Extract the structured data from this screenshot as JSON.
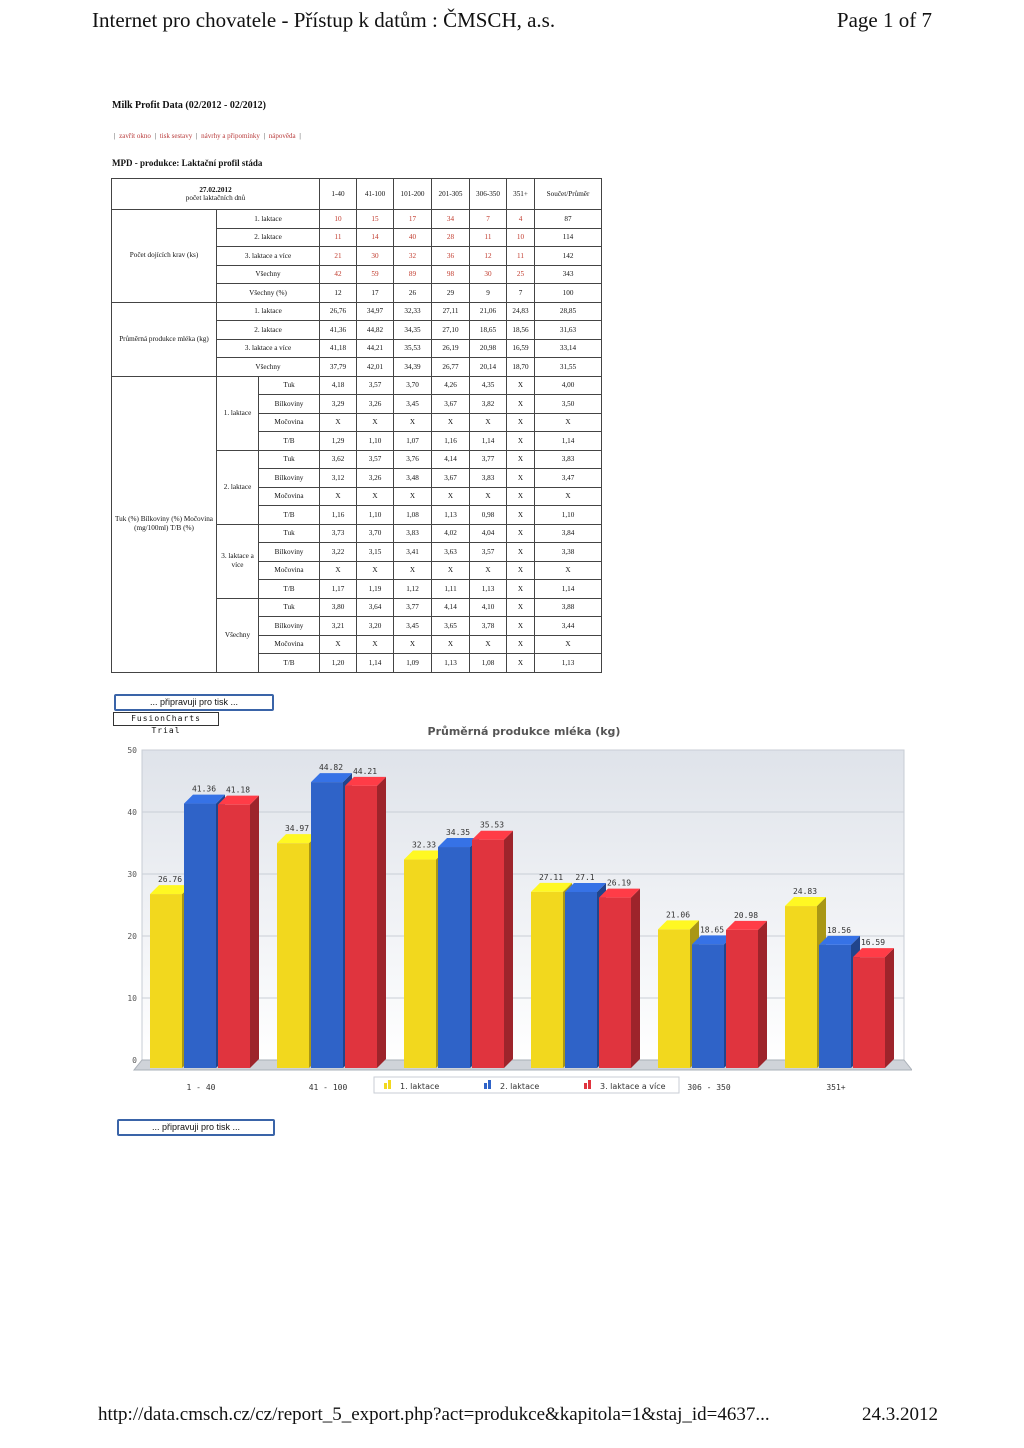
{
  "header": {
    "title": "Internet pro chovatele - Přístup k datům : ČMSCH, a.s.",
    "page": "Page 1 of 7"
  },
  "app_title": "Milk Profit Data (02/2012 - 02/2012)",
  "links": [
    "zavřít okno",
    "tisk sestavy",
    "návrhy a připomínky",
    "nápověda"
  ],
  "section_title": "MPD - produkce: Laktační profil stáda",
  "table": {
    "corner_date": "27.02.2012",
    "corner_label": "počet laktačních dnů",
    "columns": [
      "1-40",
      "41-100",
      "101-200",
      "201-305",
      "306-350",
      "351+",
      "Součet/Průměr"
    ],
    "group1": {
      "label": "Počet dojících krav (ks)",
      "rows": [
        {
          "label": "1. laktace",
          "values": [
            "10",
            "15",
            "17",
            "34",
            "7",
            "4",
            "87"
          ]
        },
        {
          "label": "2. laktace",
          "values": [
            "11",
            "14",
            "40",
            "28",
            "11",
            "10",
            "114"
          ]
        },
        {
          "label": "3. laktace a více",
          "values": [
            "21",
            "30",
            "32",
            "36",
            "12",
            "11",
            "142"
          ]
        },
        {
          "label": "Všechny",
          "values": [
            "42",
            "59",
            "89",
            "98",
            "30",
            "25",
            "343"
          ]
        },
        {
          "label": "Všechny (%)",
          "values": [
            "12",
            "17",
            "26",
            "29",
            "9",
            "7",
            "100"
          ]
        }
      ]
    },
    "group2": {
      "label": "Průměrná produkce mléka (kg)",
      "rows": [
        {
          "label": "1. laktace",
          "values": [
            "26,76",
            "34,97",
            "32,33",
            "27,11",
            "21,06",
            "24,83",
            "28,85"
          ]
        },
        {
          "label": "2. laktace",
          "values": [
            "41,36",
            "44,82",
            "34,35",
            "27,10",
            "18,65",
            "18,56",
            "31,63"
          ]
        },
        {
          "label": "3. laktace a více",
          "values": [
            "41,18",
            "44,21",
            "35,53",
            "26,19",
            "20,98",
            "16,59",
            "33,14"
          ]
        },
        {
          "label": "Všechny",
          "values": [
            "37,79",
            "42,01",
            "34,39",
            "26,77",
            "20,14",
            "18,70",
            "31,55"
          ]
        }
      ]
    },
    "group3": {
      "label": "Tuk (%) Bílkoviny (%) Močovina (mg/100ml) T/B (%)",
      "subgroups": [
        {
          "label": "1. laktace",
          "rows": [
            {
              "label": "Tuk",
              "values": [
                "4,18",
                "3,57",
                "3,70",
                "4,26",
                "4,35",
                "X",
                "4,00"
              ]
            },
            {
              "label": "Bílkoviny",
              "values": [
                "3,29",
                "3,26",
                "3,45",
                "3,67",
                "3,82",
                "X",
                "3,50"
              ]
            },
            {
              "label": "Močovina",
              "values": [
                "X",
                "X",
                "X",
                "X",
                "X",
                "X",
                "X"
              ]
            },
            {
              "label": "T/B",
              "values": [
                "1,29",
                "1,10",
                "1,07",
                "1,16",
                "1,14",
                "X",
                "1,14"
              ]
            }
          ]
        },
        {
          "label": "2. laktace",
          "rows": [
            {
              "label": "Tuk",
              "values": [
                "3,62",
                "3,57",
                "3,76",
                "4,14",
                "3,77",
                "X",
                "3,83"
              ]
            },
            {
              "label": "Bílkoviny",
              "values": [
                "3,12",
                "3,26",
                "3,48",
                "3,67",
                "3,83",
                "X",
                "3,47"
              ]
            },
            {
              "label": "Močovina",
              "values": [
                "X",
                "X",
                "X",
                "X",
                "X",
                "X",
                "X"
              ]
            },
            {
              "label": "T/B",
              "values": [
                "1,16",
                "1,10",
                "1,08",
                "1,13",
                "0,98",
                "X",
                "1,10"
              ]
            }
          ]
        },
        {
          "label": "3. laktace a více",
          "rows": [
            {
              "label": "Tuk",
              "values": [
                "3,73",
                "3,70",
                "3,83",
                "4,02",
                "4,04",
                "X",
                "3,84"
              ]
            },
            {
              "label": "Bílkoviny",
              "values": [
                "3,22",
                "3,15",
                "3,41",
                "3,63",
                "3,57",
                "X",
                "3,38"
              ]
            },
            {
              "label": "Močovina",
              "values": [
                "X",
                "X",
                "X",
                "X",
                "X",
                "X",
                "X"
              ]
            },
            {
              "label": "T/B",
              "values": [
                "1,17",
                "1,19",
                "1,12",
                "1,11",
                "1,13",
                "X",
                "1,14"
              ]
            }
          ]
        },
        {
          "label": "Všechny",
          "rows": [
            {
              "label": "Tuk",
              "values": [
                "3,80",
                "3,64",
                "3,77",
                "4,14",
                "4,10",
                "X",
                "3,88"
              ]
            },
            {
              "label": "Bílkoviny",
              "values": [
                "3,21",
                "3,20",
                "3,45",
                "3,65",
                "3,78",
                "X",
                "3,44"
              ]
            },
            {
              "label": "Močovina",
              "values": [
                "X",
                "X",
                "X",
                "X",
                "X",
                "X",
                "X"
              ]
            },
            {
              "label": "T/B",
              "values": [
                "1,20",
                "1,14",
                "1,09",
                "1,13",
                "1,08",
                "X",
                "1,13"
              ]
            }
          ]
        }
      ]
    }
  },
  "print_button_label": "... připravuji pro tisk ...",
  "trial_label": "FusionCharts Trial",
  "chart_data": {
    "type": "bar",
    "title": "Průměrná produkce mléka (kg)",
    "categories": [
      "1 - 40",
      "41 - 100",
      "101 - 200",
      "201 - 305",
      "306 - 350",
      "351+"
    ],
    "series": [
      {
        "name": "1. laktace",
        "color": "#f2d81e",
        "values": [
          26.76,
          34.97,
          32.33,
          27.11,
          21.06,
          24.83
        ]
      },
      {
        "name": "2. laktace",
        "color": "#2f63c8",
        "values": [
          41.36,
          44.82,
          34.35,
          27.1,
          18.65,
          18.56
        ]
      },
      {
        "name": "3. laktace a více",
        "color": "#e0343e",
        "values": [
          41.18,
          44.21,
          35.53,
          26.19,
          20.98,
          16.59
        ]
      }
    ],
    "ylim": [
      0,
      50
    ],
    "yticks": [
      "0",
      "10",
      "20",
      "30",
      "40",
      "50"
    ],
    "legend": "bottom",
    "grid": true
  },
  "footer": {
    "url": "http://data.cmsch.cz/cz/report_5_export.php?act=produkce&kapitola=1&staj_id=4637...",
    "date": "24.3.2012"
  }
}
